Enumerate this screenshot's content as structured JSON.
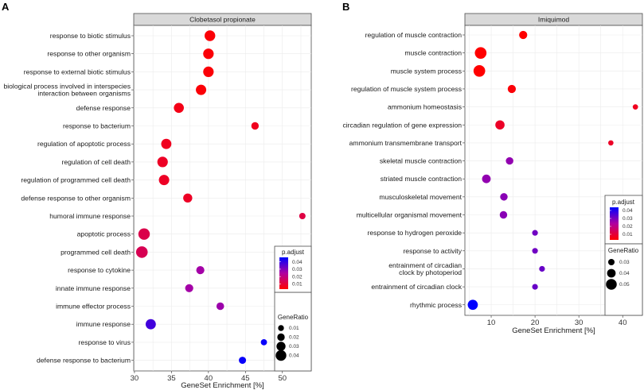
{
  "chart_data": [
    {
      "type": "scatter",
      "panel_label": "A",
      "title": "Clobetasol propionate",
      "xlabel": "GeneSet Enrichment [%]",
      "ylabel": "",
      "xlim": [
        29.9,
        53.9
      ],
      "xticks": [
        30,
        35,
        40,
        45,
        50
      ],
      "grid": true,
      "legend_position": "bottom-right inside",
      "color_legend": {
        "title": "p.adjust",
        "ticks": [
          0.01,
          0.02,
          0.03,
          0.04
        ],
        "range": [
          0.003,
          0.046
        ],
        "low_color": "#ff0000",
        "high_color": "#0000ff"
      },
      "size_legend": {
        "title": "GeneRatio",
        "ticks": [
          0.01,
          0.02,
          0.03,
          0.04
        ],
        "range": [
          0.005,
          0.045
        ]
      },
      "points": [
        {
          "term": "response to biotic stimulus",
          "x": 40.2,
          "p_adjust": 0.004,
          "gene_ratio": 0.04
        },
        {
          "term": "response to other organism",
          "x": 40.0,
          "p_adjust": 0.004,
          "gene_ratio": 0.039
        },
        {
          "term": "response to external biotic stimulus",
          "x": 40.0,
          "p_adjust": 0.004,
          "gene_ratio": 0.039
        },
        {
          "term": "biological process involved in interspecies\ninteraction between organisms",
          "x": 39.0,
          "p_adjust": 0.004,
          "gene_ratio": 0.038
        },
        {
          "term": "defense response",
          "x": 36.0,
          "p_adjust": 0.006,
          "gene_ratio": 0.036
        },
        {
          "term": "response to bacterium",
          "x": 46.3,
          "p_adjust": 0.007,
          "gene_ratio": 0.02
        },
        {
          "term": "regulation of apoptotic process",
          "x": 34.3,
          "p_adjust": 0.007,
          "gene_ratio": 0.037
        },
        {
          "term": "regulation of cell death",
          "x": 33.8,
          "p_adjust": 0.008,
          "gene_ratio": 0.039
        },
        {
          "term": "regulation of programmed cell death",
          "x": 34.0,
          "p_adjust": 0.008,
          "gene_ratio": 0.038
        },
        {
          "term": "defense response to other organism",
          "x": 37.2,
          "p_adjust": 0.008,
          "gene_ratio": 0.03
        },
        {
          "term": "humoral immune response",
          "x": 52.7,
          "p_adjust": 0.012,
          "gene_ratio": 0.013
        },
        {
          "term": "apoptotic process",
          "x": 31.3,
          "p_adjust": 0.013,
          "gene_ratio": 0.045
        },
        {
          "term": "programmed cell death",
          "x": 31.0,
          "p_adjust": 0.014,
          "gene_ratio": 0.046
        },
        {
          "term": "response to cytokine",
          "x": 38.9,
          "p_adjust": 0.026,
          "gene_ratio": 0.024
        },
        {
          "term": "innate immune response",
          "x": 37.4,
          "p_adjust": 0.026,
          "gene_ratio": 0.024
        },
        {
          "term": "immune effector process",
          "x": 41.6,
          "p_adjust": 0.027,
          "gene_ratio": 0.021
        },
        {
          "term": "immune response",
          "x": 32.2,
          "p_adjust": 0.038,
          "gene_ratio": 0.037
        },
        {
          "term": "response to virus",
          "x": 47.5,
          "p_adjust": 0.045,
          "gene_ratio": 0.012
        },
        {
          "term": "defense response to bacterium",
          "x": 44.6,
          "p_adjust": 0.045,
          "gene_ratio": 0.018
        }
      ]
    },
    {
      "type": "scatter",
      "panel_label": "B",
      "title": "Imiquimod",
      "xlabel": "GeneSet Enrichment [%]",
      "ylabel": "",
      "xlim": [
        4.0,
        44.5
      ],
      "xticks": [
        10,
        20,
        30,
        40
      ],
      "grid": true,
      "legend_position": "bottom-right inside",
      "color_legend": {
        "title": "p.adjust",
        "ticks": [
          0.01,
          0.02,
          0.03,
          0.04
        ],
        "range": [
          0.003,
          0.044
        ],
        "low_color": "#ff0000",
        "high_color": "#0000ff"
      },
      "size_legend": {
        "title": "GeneRatio",
        "ticks": [
          0.03,
          0.04,
          0.05
        ],
        "range": [
          0.024,
          0.056
        ]
      },
      "points": [
        {
          "term": "regulation of muscle contraction",
          "x": 17.3,
          "p_adjust": 0.003,
          "gene_ratio": 0.038
        },
        {
          "term": "muscle contraction",
          "x": 7.6,
          "p_adjust": 0.003,
          "gene_ratio": 0.054
        },
        {
          "term": "muscle system process",
          "x": 7.3,
          "p_adjust": 0.003,
          "gene_ratio": 0.054
        },
        {
          "term": "regulation of muscle system process",
          "x": 14.7,
          "p_adjust": 0.004,
          "gene_ratio": 0.038
        },
        {
          "term": "ammonium homeostasis",
          "x": 42.9,
          "p_adjust": 0.007,
          "gene_ratio": 0.025
        },
        {
          "term": "circadian regulation of gene expression",
          "x": 12.0,
          "p_adjust": 0.008,
          "gene_ratio": 0.043
        },
        {
          "term": "ammonium transmembrane transport",
          "x": 37.3,
          "p_adjust": 0.008,
          "gene_ratio": 0.025
        },
        {
          "term": "skeletal muscle contraction",
          "x": 14.2,
          "p_adjust": 0.027,
          "gene_ratio": 0.035
        },
        {
          "term": "striated muscle contraction",
          "x": 8.9,
          "p_adjust": 0.027,
          "gene_ratio": 0.04
        },
        {
          "term": "musculoskeletal movement",
          "x": 12.9,
          "p_adjust": 0.028,
          "gene_ratio": 0.035
        },
        {
          "term": "multicellular organismal movement",
          "x": 12.8,
          "p_adjust": 0.028,
          "gene_ratio": 0.035
        },
        {
          "term": "response to hydrogen peroxide",
          "x": 20.0,
          "p_adjust": 0.031,
          "gene_ratio": 0.027
        },
        {
          "term": "response to activity",
          "x": 20.0,
          "p_adjust": 0.031,
          "gene_ratio": 0.027
        },
        {
          "term": "entrainment of circadian\nclock by photoperiod",
          "x": 21.6,
          "p_adjust": 0.032,
          "gene_ratio": 0.027
        },
        {
          "term": "entrainment of circadian clock",
          "x": 20.0,
          "p_adjust": 0.032,
          "gene_ratio": 0.027
        },
        {
          "term": "rhythmic process",
          "x": 5.8,
          "p_adjust": 0.044,
          "gene_ratio": 0.047
        }
      ]
    }
  ]
}
